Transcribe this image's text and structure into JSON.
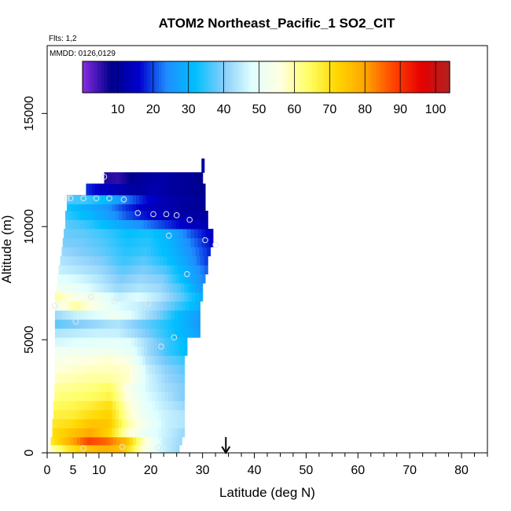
{
  "chart_data": {
    "type": "heatmap",
    "title": "ATOM2 Northeast_Pacific_1 SO2_CIT",
    "flights_label": "Flts: 1,2",
    "dates_label": "MMDD: 0126,0129",
    "xlabel": "Latitude (deg N)",
    "ylabel": "Altitude (m)",
    "xlim": [
      0,
      85
    ],
    "ylim": [
      0,
      18000
    ],
    "x_ticks": [
      0,
      5,
      10,
      20,
      30,
      40,
      50,
      60,
      70,
      80
    ],
    "y_ticks": [
      0,
      5000,
      10000,
      15000
    ],
    "x_minor_ticks": [
      2.5,
      7.5,
      12.5,
      15,
      17.5,
      22.5,
      25,
      27.5,
      32.5,
      35,
      37.5,
      42.5,
      45,
      47.5,
      52.5,
      55,
      57.5,
      62.5,
      65,
      67.5,
      72.5,
      75,
      77.5,
      82.5,
      85
    ],
    "colorbar": {
      "min": 0,
      "max": 104,
      "ticks": [
        10,
        20,
        30,
        40,
        50,
        60,
        70,
        80,
        90,
        100
      ],
      "colors": [
        "#8a2be2",
        "#00008b",
        "#0000cd",
        "#1e90ff",
        "#00bfff",
        "#87cefa",
        "#e0ffff",
        "#ffffe0",
        "#ffff66",
        "#ffd700",
        "#ffa500",
        "#ff4500",
        "#e60000",
        "#b22222"
      ]
    },
    "marker_latitude": 34.5,
    "profile_bands": [
      {
        "alt0": 0,
        "alt1": 350,
        "lat0": 0.5,
        "lat1": 25.5,
        "shade": [
          0.55,
          0.66,
          0.72,
          0.75,
          0.72,
          0.55,
          0.45,
          0.4
        ]
      },
      {
        "alt0": 350,
        "alt1": 700,
        "lat0": 0.7,
        "lat1": 26,
        "shade": [
          0.66,
          0.75,
          0.85,
          0.82,
          0.74,
          0.55,
          0.44,
          0.4
        ]
      },
      {
        "alt0": 700,
        "alt1": 1100,
        "lat0": 1.0,
        "lat1": 26.5,
        "shade": [
          0.68,
          0.72,
          0.76,
          0.7,
          0.55,
          0.48,
          0.44,
          0.4
        ]
      },
      {
        "alt0": 1100,
        "alt1": 1500,
        "lat0": 1.0,
        "lat1": 26.5,
        "shade": [
          0.66,
          0.68,
          0.72,
          0.72,
          0.58,
          0.5,
          0.44,
          0.42
        ]
      },
      {
        "alt0": 1500,
        "alt1": 1900,
        "lat0": 1.2,
        "lat1": 26.5,
        "shade": [
          0.64,
          0.65,
          0.68,
          0.7,
          0.56,
          0.48,
          0.44,
          0.42
        ]
      },
      {
        "alt0": 1900,
        "alt1": 2300,
        "lat0": 1.2,
        "lat1": 26.5,
        "shade": [
          0.62,
          0.63,
          0.65,
          0.68,
          0.55,
          0.47,
          0.43,
          0.4
        ]
      },
      {
        "alt0": 2300,
        "alt1": 2700,
        "lat0": 1.4,
        "lat1": 26.5,
        "shade": [
          0.6,
          0.61,
          0.62,
          0.64,
          0.53,
          0.46,
          0.42,
          0.38
        ]
      },
      {
        "alt0": 2700,
        "alt1": 3100,
        "lat0": 1.4,
        "lat1": 26.5,
        "shade": [
          0.58,
          0.59,
          0.6,
          0.62,
          0.52,
          0.45,
          0.41,
          0.38
        ]
      },
      {
        "alt0": 3100,
        "alt1": 3500,
        "lat0": 1.5,
        "lat1": 26.5,
        "shade": [
          0.56,
          0.57,
          0.58,
          0.58,
          0.55,
          0.45,
          0.4,
          0.37
        ]
      },
      {
        "alt0": 3500,
        "alt1": 3900,
        "lat0": 1.5,
        "lat1": 26.5,
        "shade": [
          0.54,
          0.55,
          0.56,
          0.56,
          0.55,
          0.44,
          0.39,
          0.36
        ]
      },
      {
        "alt0": 3900,
        "alt1": 4300,
        "lat0": 1.5,
        "lat1": 26.5,
        "shade": [
          0.52,
          0.53,
          0.54,
          0.55,
          0.52,
          0.42,
          0.37,
          0.34
        ]
      },
      {
        "alt0": 4300,
        "alt1": 4700,
        "lat0": 1.5,
        "lat1": 27,
        "shade": [
          0.5,
          0.5,
          0.5,
          0.5,
          0.48,
          0.4,
          0.34,
          0.3
        ]
      },
      {
        "alt0": 4700,
        "alt1": 5100,
        "lat0": 1.5,
        "lat1": 27,
        "shade": [
          0.45,
          0.46,
          0.47,
          0.48,
          0.46,
          0.4,
          0.34,
          0.3
        ]
      },
      {
        "alt0": 5100,
        "alt1": 5500,
        "lat0": 1.5,
        "lat1": 29.5,
        "shade": [
          0.42,
          0.43,
          0.44,
          0.44,
          0.4,
          0.35,
          0.3,
          0.26
        ]
      },
      {
        "alt0": 5500,
        "alt1": 5900,
        "lat0": 1.5,
        "lat1": 29.5,
        "shade": [
          0.36,
          0.38,
          0.4,
          0.42,
          0.38,
          0.34,
          0.3,
          0.24
        ]
      },
      {
        "alt0": 5900,
        "alt1": 6300,
        "lat0": 1.5,
        "lat1": 29.5,
        "shade": [
          0.4,
          0.44,
          0.46,
          0.5,
          0.44,
          0.38,
          0.3,
          0.25
        ]
      },
      {
        "alt0": 6300,
        "alt1": 6700,
        "lat0": 1.5,
        "lat1": 29.5,
        "shade": [
          0.5,
          0.58,
          0.52,
          0.46,
          0.44,
          0.4,
          0.34,
          0.28
        ]
      },
      {
        "alt0": 6700,
        "alt1": 7100,
        "lat0": 1.5,
        "lat1": 30,
        "shade": [
          0.58,
          0.52,
          0.5,
          0.44,
          0.46,
          0.42,
          0.36,
          0.28
        ]
      },
      {
        "alt0": 7100,
        "alt1": 7500,
        "lat0": 1.8,
        "lat1": 30,
        "shade": [
          0.5,
          0.48,
          0.44,
          0.4,
          0.42,
          0.4,
          0.34,
          0.24
        ]
      },
      {
        "alt0": 7500,
        "alt1": 7900,
        "lat0": 2.0,
        "lat1": 30.5,
        "shade": [
          0.47,
          0.45,
          0.42,
          0.38,
          0.4,
          0.38,
          0.3,
          0.22
        ]
      },
      {
        "alt0": 7900,
        "alt1": 8300,
        "lat0": 2.2,
        "lat1": 31,
        "shade": [
          0.44,
          0.42,
          0.4,
          0.36,
          0.38,
          0.35,
          0.28,
          0.2
        ]
      },
      {
        "alt0": 8300,
        "alt1": 8700,
        "lat0": 2.5,
        "lat1": 31,
        "shade": [
          0.42,
          0.4,
          0.38,
          0.34,
          0.36,
          0.32,
          0.26,
          0.18
        ]
      },
      {
        "alt0": 8700,
        "alt1": 9100,
        "lat0": 2.8,
        "lat1": 31.5,
        "shade": [
          0.4,
          0.38,
          0.36,
          0.33,
          0.34,
          0.3,
          0.24,
          0.17
        ]
      },
      {
        "alt0": 9100,
        "alt1": 9500,
        "lat0": 3.0,
        "lat1": 32,
        "shade": [
          0.38,
          0.37,
          0.35,
          0.32,
          0.33,
          0.29,
          0.22,
          0.15
        ]
      },
      {
        "alt0": 9500,
        "alt1": 9900,
        "lat0": 3.2,
        "lat1": 32,
        "shade": [
          0.37,
          0.36,
          0.34,
          0.31,
          0.32,
          0.28,
          0.2,
          0.14
        ]
      },
      {
        "alt0": 9900,
        "alt1": 10300,
        "lat0": 3.5,
        "lat1": 31,
        "shade": [
          0.36,
          0.34,
          0.3,
          0.26,
          0.22,
          0.18,
          0.14,
          0.12
        ]
      },
      {
        "alt0": 10300,
        "alt1": 10700,
        "lat0": 3.5,
        "lat1": 31,
        "shade": [
          0.34,
          0.3,
          0.26,
          0.2,
          0.16,
          0.13,
          0.11,
          0.1
        ]
      },
      {
        "alt0": 10700,
        "alt1": 11000,
        "lat0": 3.8,
        "lat1": 30.5,
        "shade": [
          0.32,
          0.28,
          0.24,
          0.18,
          0.14,
          0.12,
          0.1,
          0.09
        ]
      },
      {
        "alt0": 11000,
        "alt1": 11400,
        "lat0": 3.8,
        "lat1": 30.5,
        "shade": [
          0.35,
          0.34,
          0.3,
          0.22,
          0.16,
          0.12,
          0.1,
          0.09
        ]
      },
      {
        "alt0": 11400,
        "alt1": 11900,
        "lat0": 7.5,
        "lat1": 30.5,
        "shade": [
          0.18,
          0.14,
          0.12,
          0.1,
          0.12,
          0.1,
          0.09,
          0.08
        ]
      },
      {
        "alt0": 11900,
        "alt1": 12400,
        "lat0": 11,
        "lat1": 30,
        "shade": [
          0.06,
          0.05,
          0.08,
          0.1,
          0.11,
          0.1,
          0.09,
          0.08
        ]
      },
      {
        "alt0": 12400,
        "alt1": 13000,
        "lat0": 29.8,
        "lat1": 30.3,
        "shade": [
          0.1,
          0.1,
          0.1,
          0.1,
          0.1,
          0.1,
          0.1,
          0.1
        ]
      }
    ],
    "points": [
      {
        "lat": 7,
        "alt": 200
      },
      {
        "lat": 14.5,
        "alt": 260
      },
      {
        "lat": 21.5,
        "alt": 230
      },
      {
        "lat": 22,
        "alt": 4700
      },
      {
        "lat": 24.5,
        "alt": 5100
      },
      {
        "lat": 5.5,
        "alt": 5800
      },
      {
        "lat": 1.5,
        "alt": 6500
      },
      {
        "lat": 8.5,
        "alt": 6900
      },
      {
        "lat": 13,
        "alt": 6700
      },
      {
        "lat": 19.5,
        "alt": 6600
      },
      {
        "lat": 27,
        "alt": 7900
      },
      {
        "lat": 23.5,
        "alt": 9600
      },
      {
        "lat": 30.5,
        "alt": 9400
      },
      {
        "lat": 32.5,
        "alt": 9200
      },
      {
        "lat": 17.5,
        "alt": 10600
      },
      {
        "lat": 20.5,
        "alt": 10550
      },
      {
        "lat": 23,
        "alt": 10550
      },
      {
        "lat": 25,
        "alt": 10500
      },
      {
        "lat": 27.5,
        "alt": 10300
      },
      {
        "lat": 3.8,
        "alt": 11250
      },
      {
        "lat": 4.5,
        "alt": 11250
      },
      {
        "lat": 7,
        "alt": 11250
      },
      {
        "lat": 9.5,
        "alt": 11250
      },
      {
        "lat": 12,
        "alt": 11250
      },
      {
        "lat": 14.8,
        "alt": 11200
      },
      {
        "lat": 11,
        "alt": 12200
      }
    ]
  }
}
